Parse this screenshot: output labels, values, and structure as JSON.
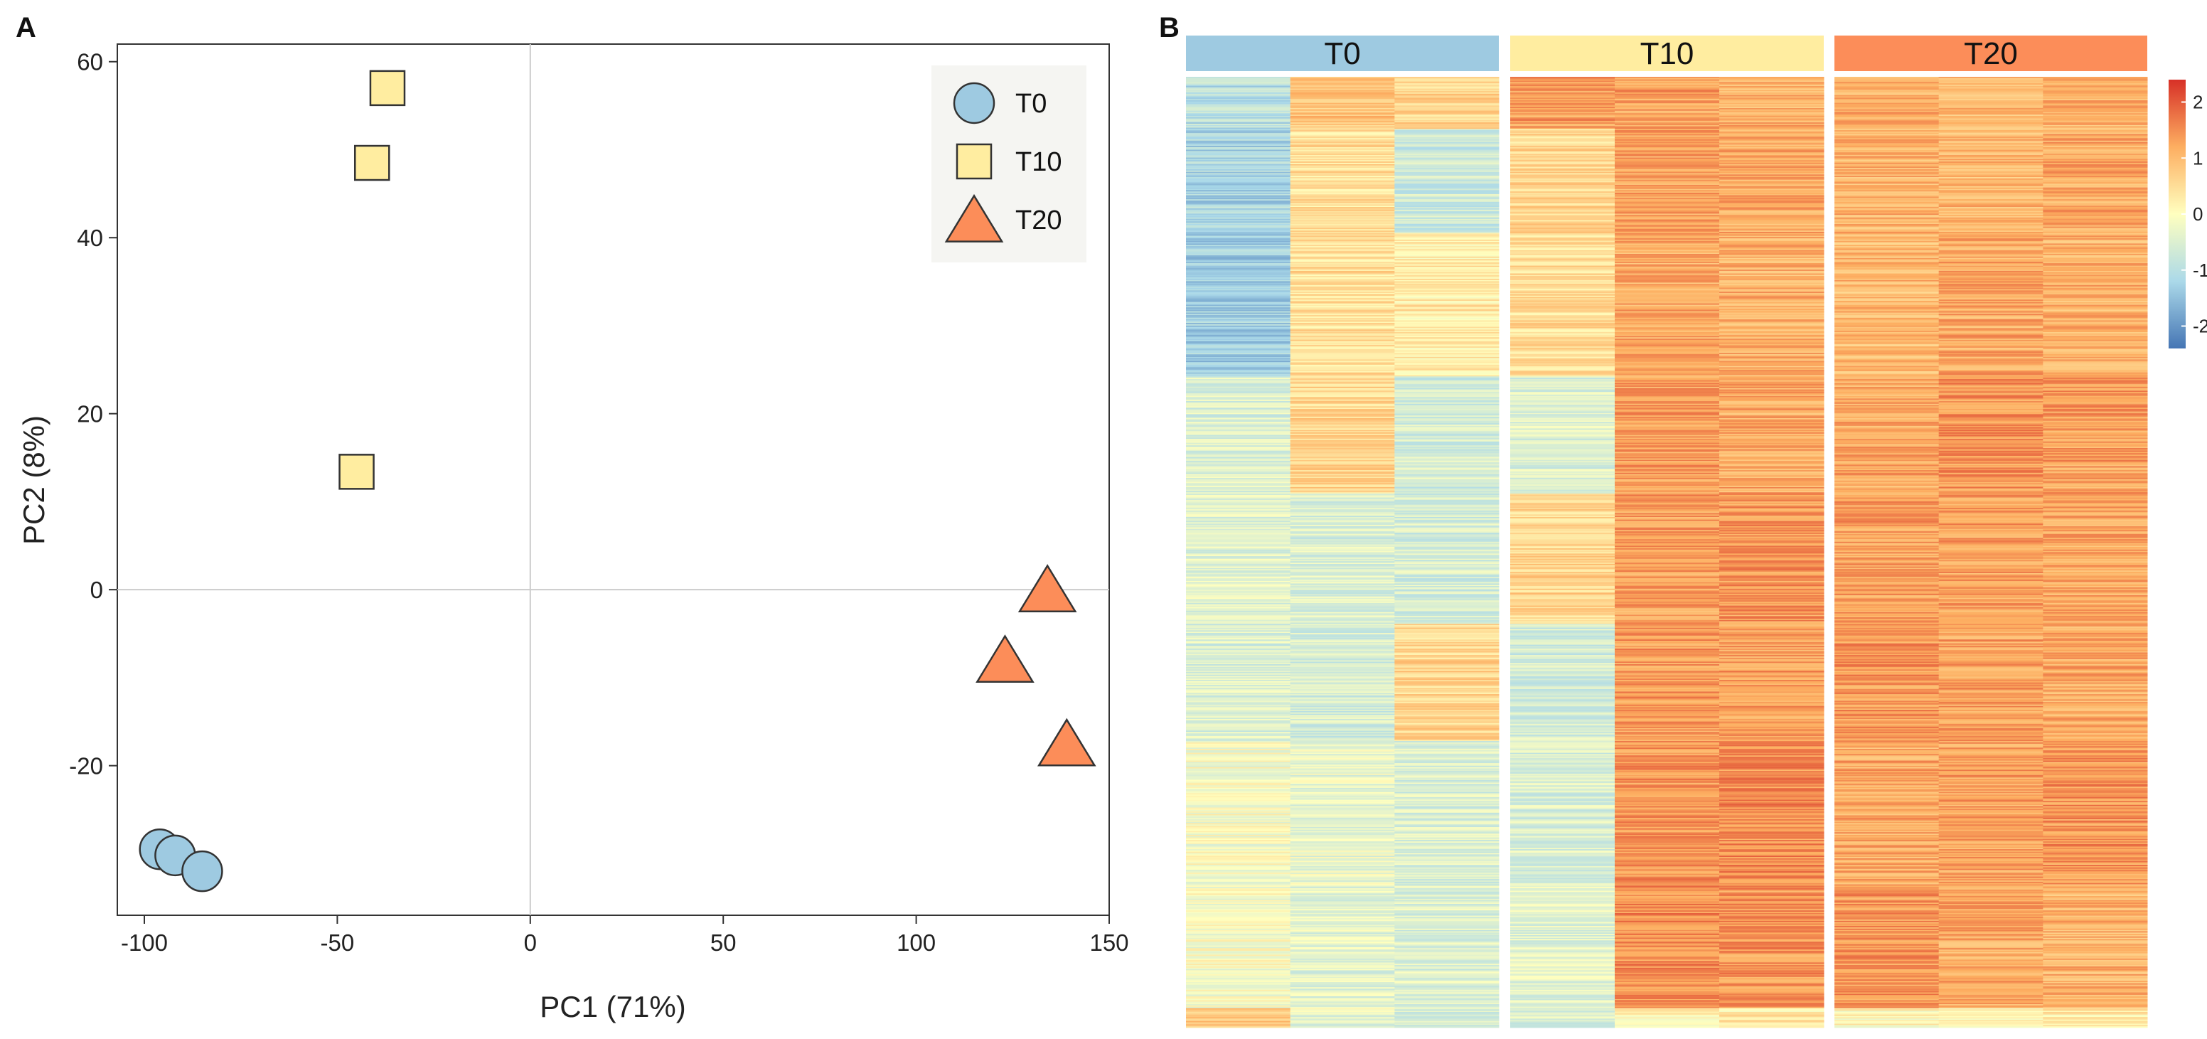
{
  "chart_data": [
    {
      "panel": "A",
      "type": "scatter",
      "title": "",
      "xlabel": "PC1 (71%)",
      "ylabel": "PC2 (8%)",
      "xlim": [
        -107,
        150
      ],
      "ylim": [
        -37,
        62
      ],
      "xticks": [
        -100,
        -50,
        0,
        50,
        100,
        150
      ],
      "yticks": [
        -20,
        0,
        20,
        40,
        60
      ],
      "reference_lines": {
        "x": 0,
        "y": 0
      },
      "legend_position": "top-right",
      "series": [
        {
          "name": "T0",
          "marker": "circle",
          "color": "#9ECAE1",
          "points": [
            [
              -96,
              -29.5
            ],
            [
              -92,
              -30.2
            ],
            [
              -85,
              -32
            ]
          ]
        },
        {
          "name": "T10",
          "marker": "square",
          "color": "#FFEDA0",
          "points": [
            [
              -37,
              57
            ],
            [
              -41,
              48.5
            ],
            [
              -45,
              13.4
            ]
          ]
        },
        {
          "name": "T20",
          "marker": "triangle",
          "color": "#FC8D59",
          "points": [
            [
              134,
              0
            ],
            [
              123,
              -8
            ],
            [
              139,
              -17.5
            ]
          ]
        }
      ]
    },
    {
      "panel": "B",
      "type": "heatmap",
      "title": "",
      "groups": [
        {
          "name": "T0",
          "color": "#9ECAE1",
          "samples": 3
        },
        {
          "name": "T10",
          "color": "#FFEDA0",
          "samples": 3
        },
        {
          "name": "T20",
          "color": "#FC8D59",
          "samples": 3
        }
      ],
      "colorbar": {
        "min": -2.4,
        "max": 2.4,
        "ticks": [
          2,
          1,
          0,
          -1,
          -2
        ],
        "colors": [
          "#4575B4",
          "#ABD9E9",
          "#FFFFBF",
          "#FDAE61",
          "#D73027"
        ]
      },
      "row_blocks": [
        {
          "rows": 40,
          "means": [
            -1.0,
            0.9,
            0.6,
            1.3,
            1.3,
            1.1,
            1.2,
            1.0,
            1.1
          ]
        },
        {
          "rows": 80,
          "means": [
            -1.2,
            0.5,
            -0.7,
            0.6,
            1.3,
            1.2,
            1.1,
            1.0,
            1.2
          ]
        },
        {
          "rows": 110,
          "means": [
            -1.3,
            0.5,
            0.3,
            0.5,
            1.2,
            1.1,
            1.0,
            1.2,
            1.1
          ]
        },
        {
          "rows": 90,
          "means": [
            -0.5,
            0.6,
            -0.6,
            -0.5,
            1.3,
            1.2,
            1.2,
            1.4,
            1.3
          ]
        },
        {
          "rows": 100,
          "means": [
            -0.4,
            -0.5,
            -0.6,
            0.6,
            1.3,
            1.4,
            1.3,
            1.3,
            1.2
          ]
        },
        {
          "rows": 90,
          "means": [
            -0.5,
            -0.6,
            0.6,
            -0.6,
            1.4,
            1.3,
            1.4,
            1.3,
            1.2
          ]
        },
        {
          "rows": 110,
          "means": [
            -0.1,
            -0.3,
            -0.5,
            -0.5,
            1.4,
            1.5,
            1.2,
            1.3,
            1.4
          ]
        },
        {
          "rows": 95,
          "means": [
            -0.1,
            -0.4,
            -0.5,
            -0.4,
            1.5,
            1.4,
            1.4,
            1.2,
            1.1
          ]
        },
        {
          "rows": 15,
          "means": [
            0.8,
            -0.3,
            -0.5,
            -0.5,
            0.2,
            0.3,
            0.1,
            0.2,
            0.3
          ]
        }
      ]
    }
  ]
}
